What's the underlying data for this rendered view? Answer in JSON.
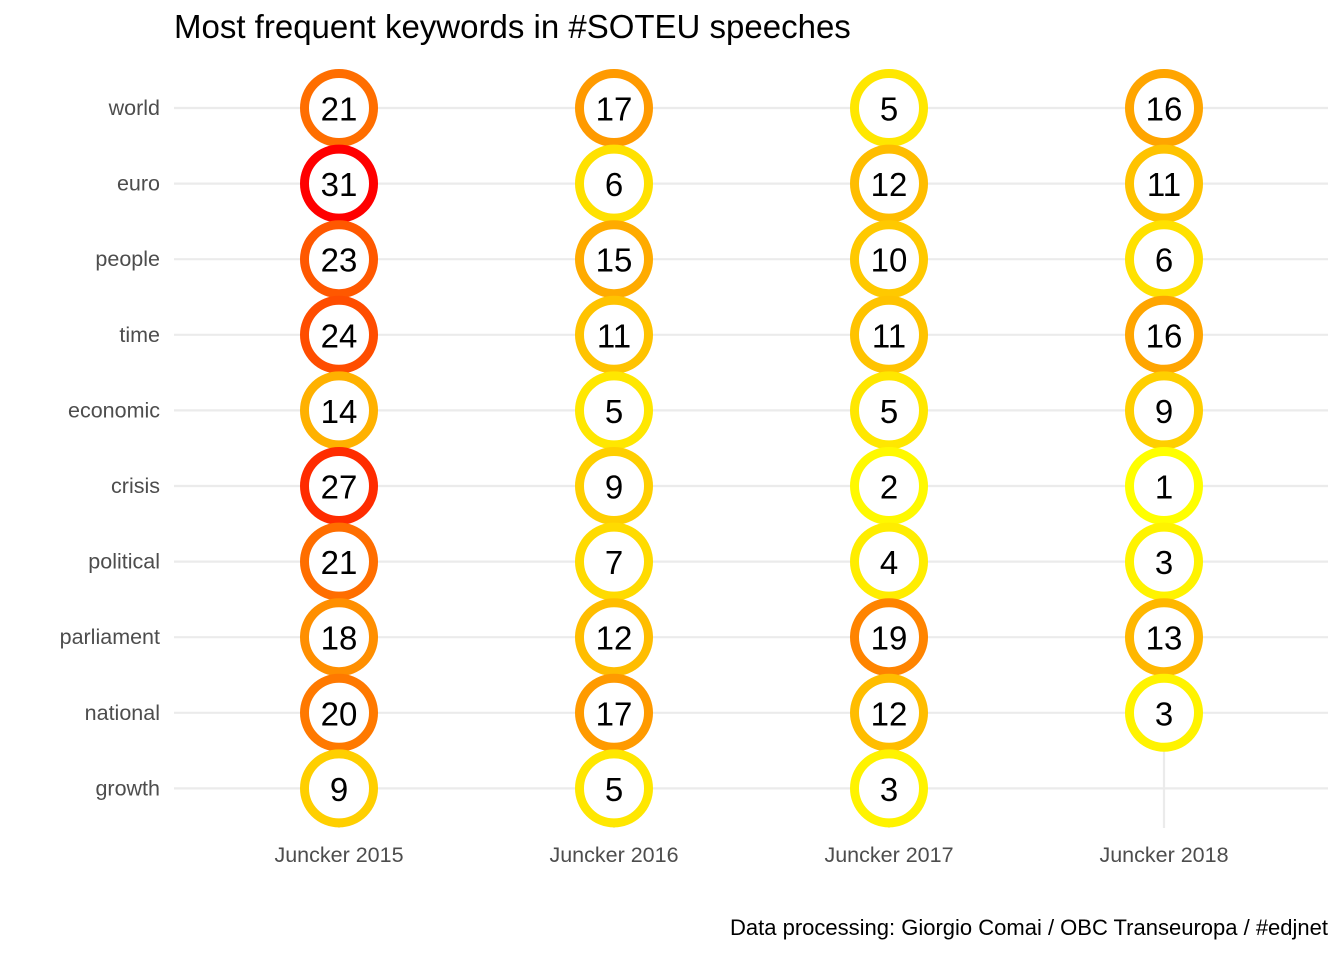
{
  "chart_data": {
    "type": "scatter",
    "title": "Most frequent keywords in #SOTEU speeches",
    "caption": "Data processing:  Giorgio Comai / OBC Transeuropa / #edjnet",
    "categories": [
      "Juncker 2015",
      "Juncker 2016",
      "Juncker 2017",
      "Juncker 2018"
    ],
    "keywords": [
      "world",
      "euro",
      "people",
      "time",
      "economic",
      "crisis",
      "political",
      "parliament",
      "national",
      "growth"
    ],
    "values": [
      [
        21,
        17,
        5,
        16
      ],
      [
        31,
        6,
        12,
        11
      ],
      [
        23,
        15,
        10,
        6
      ],
      [
        24,
        11,
        11,
        16
      ],
      [
        14,
        5,
        5,
        9
      ],
      [
        27,
        9,
        2,
        1
      ],
      [
        21,
        7,
        4,
        3
      ],
      [
        18,
        12,
        19,
        13
      ],
      [
        20,
        17,
        12,
        3
      ],
      [
        9,
        5,
        3,
        null
      ]
    ],
    "color_scale": {
      "low": "#ffff00",
      "mid": "#ffa500",
      "high": "#ff0000",
      "min": 1,
      "max": 31
    },
    "grid": true,
    "legend": "none"
  }
}
